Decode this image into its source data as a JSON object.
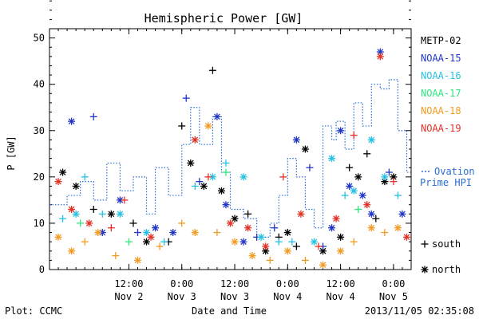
{
  "chart_data": {
    "type": "scatter",
    "title": "Hemispheric Power [GW]",
    "ylabel": "P [GW]",
    "xlabel": "Date and Time",
    "ylim": [
      0,
      52
    ],
    "yticks": [
      0,
      10,
      20,
      30,
      40,
      50
    ],
    "xlim": [
      "2013-11-01T18:00",
      "2013-11-05T04:00"
    ],
    "xticks": [
      {
        "time": "2013-11-02T12:00",
        "label1": "12:00",
        "label2": "Nov 2"
      },
      {
        "time": "2013-11-03T00:00",
        "label1": "0:00",
        "label2": "Nov 3"
      },
      {
        "time": "2013-11-03T12:00",
        "label1": "12:00",
        "label2": "Nov 3"
      },
      {
        "time": "2013-11-04T00:00",
        "label1": "0:00",
        "label2": "Nov 4"
      },
      {
        "time": "2013-11-04T12:00",
        "label1": "12:00",
        "label2": "Nov 4"
      },
      {
        "time": "2013-11-05T00:00",
        "label1": "0:00",
        "label2": "Nov 5"
      }
    ],
    "markers": {
      "south": "+",
      "north": "*"
    },
    "legend_symbols": [
      {
        "symbol": "+",
        "label": "south"
      },
      {
        "symbol": "*",
        "label": "north"
      }
    ],
    "series": [
      {
        "name": "METP-02",
        "color": "#000000",
        "points": [
          [
            "2013-11-01T21:00",
            21,
            "*"
          ],
          [
            "2013-11-02T00:00",
            18,
            "*"
          ],
          [
            "2013-11-02T04:00",
            13,
            "+"
          ],
          [
            "2013-11-02T08:00",
            12,
            "*"
          ],
          [
            "2013-11-02T13:00",
            10,
            "+"
          ],
          [
            "2013-11-02T16:00",
            6,
            "*"
          ],
          [
            "2013-11-02T21:00",
            6,
            "+"
          ],
          [
            "2013-11-03T00:00",
            31,
            "+"
          ],
          [
            "2013-11-03T02:00",
            23,
            "*"
          ],
          [
            "2013-11-03T05:00",
            18,
            "*"
          ],
          [
            "2013-11-03T07:00",
            43,
            "+"
          ],
          [
            "2013-11-03T09:00",
            17,
            "*"
          ],
          [
            "2013-11-03T12:00",
            11,
            "*"
          ],
          [
            "2013-11-03T15:00",
            12,
            "+"
          ],
          [
            "2013-11-03T19:00",
            4,
            "*"
          ],
          [
            "2013-11-03T22:00",
            7,
            "+"
          ],
          [
            "2013-11-04T00:00",
            8,
            "*"
          ],
          [
            "2013-11-04T02:00",
            5,
            "+"
          ],
          [
            "2013-11-04T04:00",
            26,
            "*"
          ],
          [
            "2013-11-04T08:00",
            4,
            "*"
          ],
          [
            "2013-11-04T12:00",
            7,
            "*"
          ],
          [
            "2013-11-04T14:00",
            22,
            "+"
          ],
          [
            "2013-11-04T16:00",
            20,
            "*"
          ],
          [
            "2013-11-04T18:00",
            25,
            "+"
          ],
          [
            "2013-11-04T20:00",
            11,
            "+"
          ],
          [
            "2013-11-04T22:00",
            19,
            "*"
          ],
          [
            "2013-11-05T00:00",
            20,
            "*"
          ]
        ]
      },
      {
        "name": "NOAA-15",
        "color": "#2136c7",
        "points": [
          [
            "2013-11-01T23:00",
            32,
            "*"
          ],
          [
            "2013-11-02T04:00",
            33,
            "+"
          ],
          [
            "2013-11-02T06:00",
            8,
            "*"
          ],
          [
            "2013-11-02T10:00",
            15,
            "*"
          ],
          [
            "2013-11-02T14:00",
            8,
            "+"
          ],
          [
            "2013-11-02T18:00",
            9,
            "*"
          ],
          [
            "2013-11-02T22:00",
            8,
            "*"
          ],
          [
            "2013-11-03T01:00",
            37,
            "+"
          ],
          [
            "2013-11-03T04:00",
            19,
            "+"
          ],
          [
            "2013-11-03T08:00",
            33,
            "*"
          ],
          [
            "2013-11-03T10:00",
            14,
            "*"
          ],
          [
            "2013-11-03T14:00",
            6,
            "*"
          ],
          [
            "2013-11-03T17:00",
            7,
            "+"
          ],
          [
            "2013-11-03T21:00",
            9,
            "+"
          ],
          [
            "2013-11-04T02:00",
            28,
            "*"
          ],
          [
            "2013-11-04T05:00",
            22,
            "+"
          ],
          [
            "2013-11-04T08:00",
            5,
            "+"
          ],
          [
            "2013-11-04T10:00",
            9,
            "*"
          ],
          [
            "2013-11-04T12:00",
            30,
            "*"
          ],
          [
            "2013-11-04T14:00",
            18,
            "*"
          ],
          [
            "2013-11-04T17:00",
            16,
            "*"
          ],
          [
            "2013-11-04T19:00",
            12,
            "*"
          ],
          [
            "2013-11-04T21:00",
            47,
            "*"
          ],
          [
            "2013-11-04T23:00",
            21,
            "+"
          ],
          [
            "2013-11-05T02:00",
            12,
            "*"
          ]
        ]
      },
      {
        "name": "NOAA-16",
        "color": "#27c1e3",
        "points": [
          [
            "2013-11-01T21:00",
            11,
            "+"
          ],
          [
            "2013-11-02T00:00",
            12,
            "*"
          ],
          [
            "2013-11-02T02:00",
            20,
            "+"
          ],
          [
            "2013-11-02T06:00",
            12,
            "+"
          ],
          [
            "2013-11-02T10:00",
            12,
            "*"
          ],
          [
            "2013-11-02T16:00",
            8,
            "*"
          ],
          [
            "2013-11-02T20:00",
            6,
            "+"
          ],
          [
            "2013-11-03T03:00",
            18,
            "+"
          ],
          [
            "2013-11-03T07:00",
            20,
            "*"
          ],
          [
            "2013-11-03T10:00",
            23,
            "+"
          ],
          [
            "2013-11-03T14:00",
            20,
            "*"
          ],
          [
            "2013-11-03T18:00",
            7,
            "*"
          ],
          [
            "2013-11-03T22:00",
            6,
            "+"
          ],
          [
            "2013-11-04T01:00",
            6,
            "+"
          ],
          [
            "2013-11-04T06:00",
            6,
            "*"
          ],
          [
            "2013-11-04T10:00",
            24,
            "*"
          ],
          [
            "2013-11-04T13:00",
            16,
            "+"
          ],
          [
            "2013-11-04T15:00",
            17,
            "*"
          ],
          [
            "2013-11-04T19:00",
            28,
            "*"
          ],
          [
            "2013-11-04T22:00",
            20,
            "*"
          ],
          [
            "2013-11-05T01:00",
            16,
            "+"
          ]
        ]
      },
      {
        "name": "NOAA-17",
        "color": "#2ee87f",
        "points": [
          [
            "2013-11-02T01:00",
            10,
            "+"
          ],
          [
            "2013-11-02T12:00",
            6,
            "+"
          ],
          [
            "2013-11-03T10:00",
            21,
            "+"
          ],
          [
            "2013-11-04T16:00",
            13,
            "+"
          ]
        ]
      },
      {
        "name": "NOAA-18",
        "color": "#f29b22",
        "points": [
          [
            "2013-11-01T20:00",
            7,
            "*"
          ],
          [
            "2013-11-01T23:00",
            4,
            "*"
          ],
          [
            "2013-11-02T02:00",
            6,
            "+"
          ],
          [
            "2013-11-02T05:00",
            8,
            "*"
          ],
          [
            "2013-11-02T09:00",
            3,
            "+"
          ],
          [
            "2013-11-02T14:00",
            2,
            "*"
          ],
          [
            "2013-11-02T19:00",
            5,
            "+"
          ],
          [
            "2013-11-03T00:00",
            10,
            "+"
          ],
          [
            "2013-11-03T03:00",
            8,
            "*"
          ],
          [
            "2013-11-03T06:00",
            31,
            "*"
          ],
          [
            "2013-11-03T08:00",
            8,
            "+"
          ],
          [
            "2013-11-03T12:00",
            6,
            "*"
          ],
          [
            "2013-11-03T16:00",
            3,
            "*"
          ],
          [
            "2013-11-03T20:00",
            2,
            "+"
          ],
          [
            "2013-11-04T00:00",
            4,
            "*"
          ],
          [
            "2013-11-04T04:00",
            2,
            "+"
          ],
          [
            "2013-11-04T08:00",
            1,
            "*"
          ],
          [
            "2013-11-04T12:00",
            4,
            "*"
          ],
          [
            "2013-11-04T15:00",
            6,
            "+"
          ],
          [
            "2013-11-04T19:00",
            9,
            "*"
          ],
          [
            "2013-11-04T22:00",
            8,
            "+"
          ],
          [
            "2013-11-05T01:00",
            9,
            "*"
          ]
        ]
      },
      {
        "name": "NOAA-19",
        "color": "#e33126",
        "points": [
          [
            "2013-11-01T20:00",
            19,
            "*"
          ],
          [
            "2013-11-01T23:00",
            13,
            "*"
          ],
          [
            "2013-11-02T03:00",
            10,
            "*"
          ],
          [
            "2013-11-02T08:00",
            9,
            "+"
          ],
          [
            "2013-11-02T11:00",
            15,
            "+"
          ],
          [
            "2013-11-02T17:00",
            7,
            "*"
          ],
          [
            "2013-11-03T03:00",
            28,
            "*"
          ],
          [
            "2013-11-03T06:00",
            20,
            "+"
          ],
          [
            "2013-11-03T11:00",
            10,
            "*"
          ],
          [
            "2013-11-03T15:00",
            9,
            "*"
          ],
          [
            "2013-11-03T19:00",
            5,
            "*"
          ],
          [
            "2013-11-03T23:00",
            20,
            "+"
          ],
          [
            "2013-11-04T03:00",
            12,
            "*"
          ],
          [
            "2013-11-04T07:00",
            5,
            "+"
          ],
          [
            "2013-11-04T11:00",
            11,
            "*"
          ],
          [
            "2013-11-04T15:00",
            29,
            "+"
          ],
          [
            "2013-11-04T18:00",
            14,
            "*"
          ],
          [
            "2013-11-04T21:00",
            46,
            "*"
          ],
          [
            "2013-11-05T00:00",
            19,
            "+"
          ],
          [
            "2013-11-05T03:00",
            7,
            "*"
          ]
        ]
      }
    ],
    "ovation": {
      "name": "Ovation Prime HPI",
      "legend_line1": "Ovation",
      "legend_line2": "Prime HPI",
      "color": "#2a6dd4",
      "style": "dotted-step",
      "steps": [
        [
          "2013-11-01T18:00",
          14
        ],
        [
          "2013-11-01T22:00",
          16
        ],
        [
          "2013-11-02T01:00",
          19
        ],
        [
          "2013-11-02T04:00",
          15
        ],
        [
          "2013-11-02T07:00",
          23
        ],
        [
          "2013-11-02T10:00",
          17
        ],
        [
          "2013-11-02T13:00",
          20
        ],
        [
          "2013-11-02T16:00",
          12
        ],
        [
          "2013-11-02T18:00",
          22
        ],
        [
          "2013-11-02T21:00",
          16
        ],
        [
          "2013-11-03T00:00",
          27
        ],
        [
          "2013-11-03T02:00",
          35
        ],
        [
          "2013-11-03T04:00",
          27
        ],
        [
          "2013-11-03T07:00",
          33
        ],
        [
          "2013-11-03T09:00",
          21
        ],
        [
          "2013-11-03T11:00",
          13
        ],
        [
          "2013-11-03T14:00",
          11
        ],
        [
          "2013-11-03T17:00",
          7
        ],
        [
          "2013-11-03T20:00",
          10
        ],
        [
          "2013-11-03T22:00",
          16
        ],
        [
          "2013-11-04T00:00",
          24
        ],
        [
          "2013-11-04T02:00",
          20
        ],
        [
          "2013-11-04T04:00",
          13
        ],
        [
          "2013-11-04T06:00",
          9
        ],
        [
          "2013-11-04T08:00",
          31
        ],
        [
          "2013-11-04T10:00",
          28
        ],
        [
          "2013-11-04T11:00",
          32
        ],
        [
          "2013-11-04T13:00",
          26
        ],
        [
          "2013-11-04T15:00",
          36
        ],
        [
          "2013-11-04T17:00",
          31
        ],
        [
          "2013-11-04T19:00",
          40
        ],
        [
          "2013-11-04T21:00",
          39
        ],
        [
          "2013-11-04T23:00",
          41
        ],
        [
          "2013-11-05T01:00",
          30
        ],
        [
          "2013-11-05T03:00",
          21
        ]
      ]
    }
  },
  "footer": {
    "left": "Plot: CCMC",
    "center": "Date and Time",
    "right": "2013/11/05 02:35:08"
  }
}
